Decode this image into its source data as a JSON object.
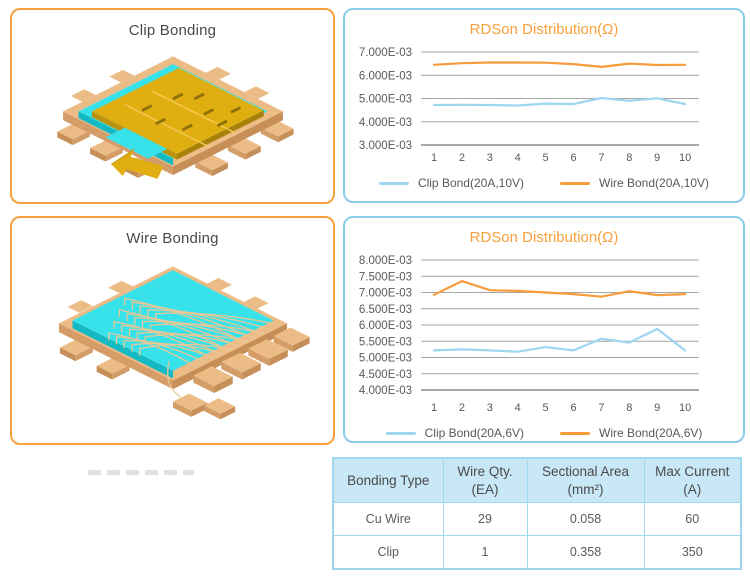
{
  "panels": {
    "clip": {
      "title": "Clip Bonding"
    },
    "wire": {
      "title": "Wire Bonding"
    }
  },
  "chart_data": [
    {
      "type": "line",
      "title": "RDSon Distribution(Ω)",
      "x": [
        1,
        2,
        3,
        4,
        5,
        6,
        7,
        8,
        9,
        10
      ],
      "xlabel": "",
      "ylabel": "",
      "ylim": [
        0.003,
        0.007
      ],
      "y_tick_labels": [
        "7.000E-03",
        "6.000E-03",
        "5.000E-03",
        "4.000E-03",
        "3.000E-03"
      ],
      "grid": true,
      "legend_position": "bottom",
      "series": [
        {
          "name": "Clip Bond(20A,10V)",
          "color": "#9CD6F1",
          "values": [
            0.00472,
            0.00473,
            0.00472,
            0.0047,
            0.00478,
            0.00476,
            0.00502,
            0.0049,
            0.00501,
            0.00476
          ]
        },
        {
          "name": "Wire Bond(20A,10V)",
          "color": "#F79C3B",
          "values": [
            0.00645,
            0.00652,
            0.00655,
            0.00655,
            0.00654,
            0.00648,
            0.00636,
            0.0065,
            0.00644,
            0.00645
          ]
        }
      ]
    },
    {
      "type": "line",
      "title": "RDSon Distribution(Ω)",
      "x": [
        1,
        2,
        3,
        4,
        5,
        6,
        7,
        8,
        9,
        10
      ],
      "xlabel": "",
      "ylabel": "",
      "ylim": [
        0.004,
        0.008
      ],
      "y_tick_labels": [
        "8.000E-03",
        "7.500E-03",
        "7.000E-03",
        "6.500E-03",
        "6.000E-03",
        "5.500E-03",
        "5.000E-03",
        "4.500E-03",
        "4.000E-03"
      ],
      "grid": true,
      "legend_position": "bottom",
      "series": [
        {
          "name": "Clip Bond(20A,6V)",
          "color": "#9CD6F1",
          "values": [
            0.00522,
            0.00525,
            0.00522,
            0.00518,
            0.00532,
            0.00522,
            0.00558,
            0.00546,
            0.00588,
            0.00522
          ]
        },
        {
          "name": "Wire Bond(20A,6V)",
          "color": "#F79C3B",
          "values": [
            0.00693,
            0.00735,
            0.00707,
            0.00705,
            0.007,
            0.00695,
            0.00687,
            0.00704,
            0.00692,
            0.00695
          ]
        }
      ]
    }
  ],
  "table": {
    "headers": [
      "Bonding Type",
      "Wire Qty.\n(EA)",
      "Sectional Area\n(mm²)",
      "Max Current\n(A)"
    ],
    "rows": [
      [
        "Cu Wire",
        "29",
        "0.058",
        "60"
      ],
      [
        "Clip",
        "1",
        "0.358",
        "350"
      ]
    ]
  },
  "colors": {
    "accent_orange": "#F7A03C",
    "accent_blue": "#8BCDE9",
    "grid": "#A6A6A6",
    "grid_dark": "#8C8C8C",
    "axis_text": "#595959",
    "text_dark": "#4A4A4A",
    "table_border": "#A0D6F0",
    "table_header_bg": "#C8E7F7",
    "leadframe_top": "#ECBC87",
    "leadframe_side": "#D49C66",
    "leadframe_side2": "#C68F58",
    "die_top": "#38E2EA",
    "die_side": "#15B9C3",
    "clip_gold": "#E0AE10",
    "clip_gold_side": "#BD920C",
    "clip_gold_side2": "#A88108",
    "clip_seam": "#F2CC54",
    "clip_slot": "#8F7207",
    "wire_gold": "#EAC795"
  }
}
